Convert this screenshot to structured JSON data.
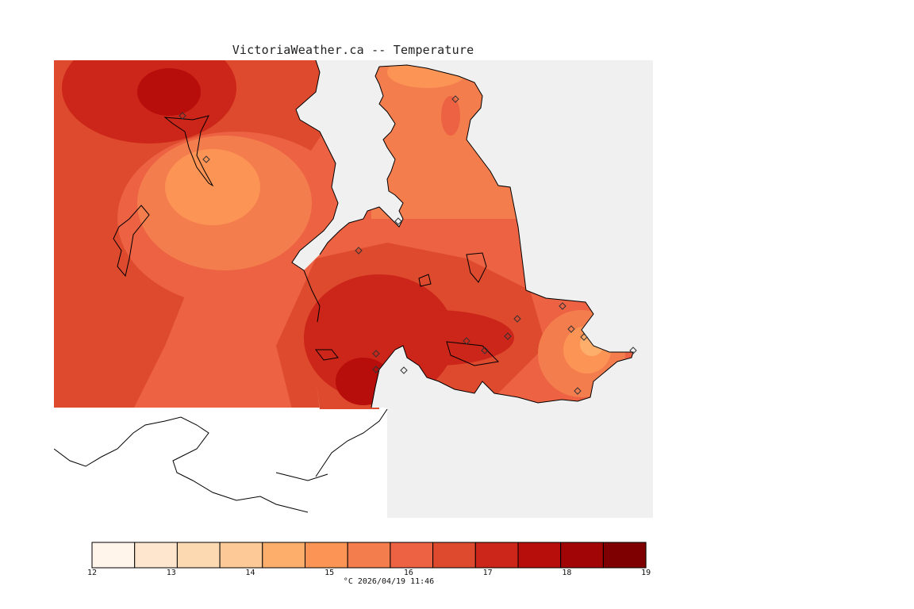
{
  "title": "VictoriaWeather.ca -- Temperature",
  "legend": {
    "ticks": [
      "12",
      "13",
      "14",
      "15",
      "16",
      "17",
      "18",
      "19"
    ],
    "colors": [
      "#fff5eb",
      "#fee6ce",
      "#fdd9b2",
      "#fdc996",
      "#fdae6b",
      "#fc9455",
      "#f47d4e",
      "#ec6242",
      "#de4a2e",
      "#cc2519",
      "#b70d0b",
      "#a20505",
      "#7f0000"
    ],
    "footer": "°C 2026/04/19 11:46"
  },
  "map": {
    "colors": {
      "water": "#f0f0f0",
      "land_nodata": "#ffffff",
      "coast": "#000000"
    }
  }
}
